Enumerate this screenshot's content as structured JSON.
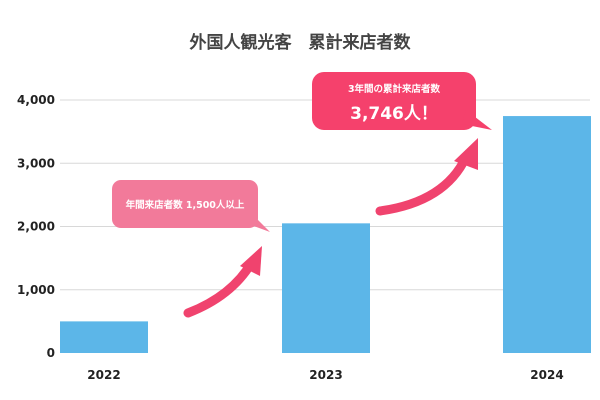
{
  "chart_data": {
    "type": "bar",
    "title": "外国人観光客　累計来店者数",
    "categories": [
      "2022",
      "2023",
      "2024"
    ],
    "values": [
      500,
      2050,
      3746
    ],
    "ylim": [
      0,
      4000
    ],
    "yticks": [
      "0",
      "1,000",
      "2,000",
      "3,000",
      "4,000"
    ],
    "grid": true,
    "legend": "none",
    "annotations": [
      {
        "text": "年間来店者数 1,500人以上",
        "color": "#f27a9a"
      },
      {
        "line1": "3年間の累計来店者数",
        "line2": "3,746人！",
        "color": "#f5416c"
      }
    ],
    "colors": {
      "bar": "#5cb6e8",
      "grid": "#d8d8d8",
      "arrow": "#f0436e"
    }
  }
}
